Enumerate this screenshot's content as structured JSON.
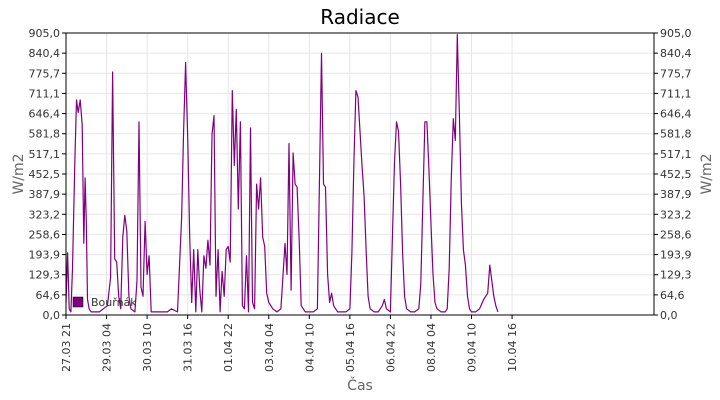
{
  "chart_data": {
    "type": "line",
    "title": "Radiace",
    "xlabel": "Čas",
    "ylabel_left": "W/m2",
    "ylabel_right": "W/m2",
    "ylim": [
      0,
      905.0
    ],
    "yticks": [
      "0,0",
      "64,6",
      "129,3",
      "193,9",
      "258,6",
      "323,2",
      "387,9",
      "452,5",
      "517,1",
      "581,8",
      "646,4",
      "711,1",
      "775,7",
      "840,4",
      "905,0"
    ],
    "xlim": [
      0,
      14.5
    ],
    "xticks": [
      {
        "x": 0,
        "label": "27.03 21"
      },
      {
        "x": 1,
        "label": "29.03 04"
      },
      {
        "x": 2,
        "label": "30.03 10"
      },
      {
        "x": 3,
        "label": "31.03 16"
      },
      {
        "x": 4,
        "label": "01.04 22"
      },
      {
        "x": 5,
        "label": "03.04 04"
      },
      {
        "x": 6,
        "label": "04.04 10"
      },
      {
        "x": 7,
        "label": "05.04 16"
      },
      {
        "x": 8,
        "label": "06.04 22"
      },
      {
        "x": 9,
        "label": "08.04 04"
      },
      {
        "x": 10,
        "label": "09.04 10"
      },
      {
        "x": 11,
        "label": "10.04 16"
      }
    ],
    "grid": true,
    "legend_position": "bottom-left",
    "series": [
      {
        "name": "Bouřňák",
        "color": "#800080",
        "points": [
          [
            0.0,
            40
          ],
          [
            0.04,
            200
          ],
          [
            0.08,
            20
          ],
          [
            0.12,
            10
          ],
          [
            0.16,
            150
          ],
          [
            0.22,
            500
          ],
          [
            0.26,
            690
          ],
          [
            0.3,
            650
          ],
          [
            0.35,
            690
          ],
          [
            0.4,
            610
          ],
          [
            0.44,
            230
          ],
          [
            0.47,
            440
          ],
          [
            0.5,
            300
          ],
          [
            0.53,
            50
          ],
          [
            0.57,
            20
          ],
          [
            0.62,
            10
          ],
          [
            0.72,
            10
          ],
          [
            0.82,
            10
          ],
          [
            0.92,
            20
          ],
          [
            1.02,
            30
          ],
          [
            1.1,
            120
          ],
          [
            1.15,
            780
          ],
          [
            1.2,
            180
          ],
          [
            1.25,
            170
          ],
          [
            1.3,
            60
          ],
          [
            1.35,
            20
          ],
          [
            1.4,
            250
          ],
          [
            1.45,
            320
          ],
          [
            1.5,
            270
          ],
          [
            1.55,
            60
          ],
          [
            1.6,
            20
          ],
          [
            1.7,
            10
          ],
          [
            1.75,
            110
          ],
          [
            1.8,
            620
          ],
          [
            1.85,
            90
          ],
          [
            1.9,
            60
          ],
          [
            1.95,
            300
          ],
          [
            2.0,
            130
          ],
          [
            2.05,
            190
          ],
          [
            2.1,
            10
          ],
          [
            2.2,
            10
          ],
          [
            2.35,
            10
          ],
          [
            2.5,
            10
          ],
          [
            2.6,
            20
          ],
          [
            2.75,
            10
          ],
          [
            2.85,
            310
          ],
          [
            2.9,
            590
          ],
          [
            2.95,
            810
          ],
          [
            3.0,
            570
          ],
          [
            3.05,
            250
          ],
          [
            3.1,
            40
          ],
          [
            3.15,
            210
          ],
          [
            3.2,
            10
          ],
          [
            3.25,
            210
          ],
          [
            3.3,
            80
          ],
          [
            3.35,
            10
          ],
          [
            3.4,
            190
          ],
          [
            3.45,
            150
          ],
          [
            3.5,
            240
          ],
          [
            3.55,
            160
          ],
          [
            3.6,
            580
          ],
          [
            3.65,
            640
          ],
          [
            3.7,
            60
          ],
          [
            3.75,
            210
          ],
          [
            3.8,
            10
          ],
          [
            3.85,
            140
          ],
          [
            3.9,
            60
          ],
          [
            3.95,
            210
          ],
          [
            4.0,
            220
          ],
          [
            4.05,
            170
          ],
          [
            4.1,
            720
          ],
          [
            4.15,
            480
          ],
          [
            4.2,
            660
          ],
          [
            4.25,
            340
          ],
          [
            4.3,
            620
          ],
          [
            4.35,
            30
          ],
          [
            4.4,
            20
          ],
          [
            4.45,
            190
          ],
          [
            4.5,
            10
          ],
          [
            4.55,
            600
          ],
          [
            4.6,
            40
          ],
          [
            4.65,
            20
          ],
          [
            4.7,
            420
          ],
          [
            4.75,
            340
          ],
          [
            4.8,
            440
          ],
          [
            4.85,
            250
          ],
          [
            4.9,
            220
          ],
          [
            4.95,
            70
          ],
          [
            5.0,
            40
          ],
          [
            5.1,
            20
          ],
          [
            5.2,
            10
          ],
          [
            5.3,
            20
          ],
          [
            5.4,
            230
          ],
          [
            5.45,
            130
          ],
          [
            5.5,
            550
          ],
          [
            5.55,
            80
          ],
          [
            5.6,
            520
          ],
          [
            5.65,
            420
          ],
          [
            5.7,
            410
          ],
          [
            5.75,
            240
          ],
          [
            5.8,
            30
          ],
          [
            5.9,
            10
          ],
          [
            6.0,
            10
          ],
          [
            6.1,
            10
          ],
          [
            6.2,
            20
          ],
          [
            6.3,
            840
          ],
          [
            6.35,
            420
          ],
          [
            6.4,
            410
          ],
          [
            6.45,
            130
          ],
          [
            6.5,
            40
          ],
          [
            6.55,
            70
          ],
          [
            6.6,
            30
          ],
          [
            6.7,
            10
          ],
          [
            6.8,
            10
          ],
          [
            6.9,
            10
          ],
          [
            7.0,
            20
          ],
          [
            7.05,
            200
          ],
          [
            7.1,
            490
          ],
          [
            7.15,
            720
          ],
          [
            7.2,
            700
          ],
          [
            7.25,
            590
          ],
          [
            7.3,
            480
          ],
          [
            7.35,
            380
          ],
          [
            7.4,
            210
          ],
          [
            7.45,
            60
          ],
          [
            7.5,
            20
          ],
          [
            7.6,
            10
          ],
          [
            7.7,
            10
          ],
          [
            7.8,
            30
          ],
          [
            7.85,
            50
          ],
          [
            7.9,
            20
          ],
          [
            8.0,
            10
          ],
          [
            8.05,
            250
          ],
          [
            8.1,
            490
          ],
          [
            8.15,
            620
          ],
          [
            8.2,
            590
          ],
          [
            8.25,
            420
          ],
          [
            8.3,
            200
          ],
          [
            8.35,
            60
          ],
          [
            8.4,
            20
          ],
          [
            8.5,
            10
          ],
          [
            8.6,
            10
          ],
          [
            8.7,
            20
          ],
          [
            8.75,
            100
          ],
          [
            8.8,
            370
          ],
          [
            8.85,
            620
          ],
          [
            8.9,
            620
          ],
          [
            8.95,
            470
          ],
          [
            9.0,
            290
          ],
          [
            9.05,
            130
          ],
          [
            9.1,
            40
          ],
          [
            9.15,
            20
          ],
          [
            9.25,
            10
          ],
          [
            9.35,
            10
          ],
          [
            9.4,
            20
          ],
          [
            9.45,
            150
          ],
          [
            9.5,
            430
          ],
          [
            9.55,
            630
          ],
          [
            9.6,
            560
          ],
          [
            9.65,
            900
          ],
          [
            9.7,
            640
          ],
          [
            9.75,
            360
          ],
          [
            9.8,
            210
          ],
          [
            9.85,
            160
          ],
          [
            9.9,
            60
          ],
          [
            9.95,
            20
          ],
          [
            10.0,
            10
          ],
          [
            10.1,
            10
          ],
          [
            10.2,
            20
          ],
          [
            10.3,
            50
          ],
          [
            10.4,
            70
          ],
          [
            10.45,
            160
          ],
          [
            10.5,
            110
          ],
          [
            10.55,
            60
          ],
          [
            10.6,
            30
          ],
          [
            10.65,
            10
          ]
        ]
      }
    ]
  }
}
